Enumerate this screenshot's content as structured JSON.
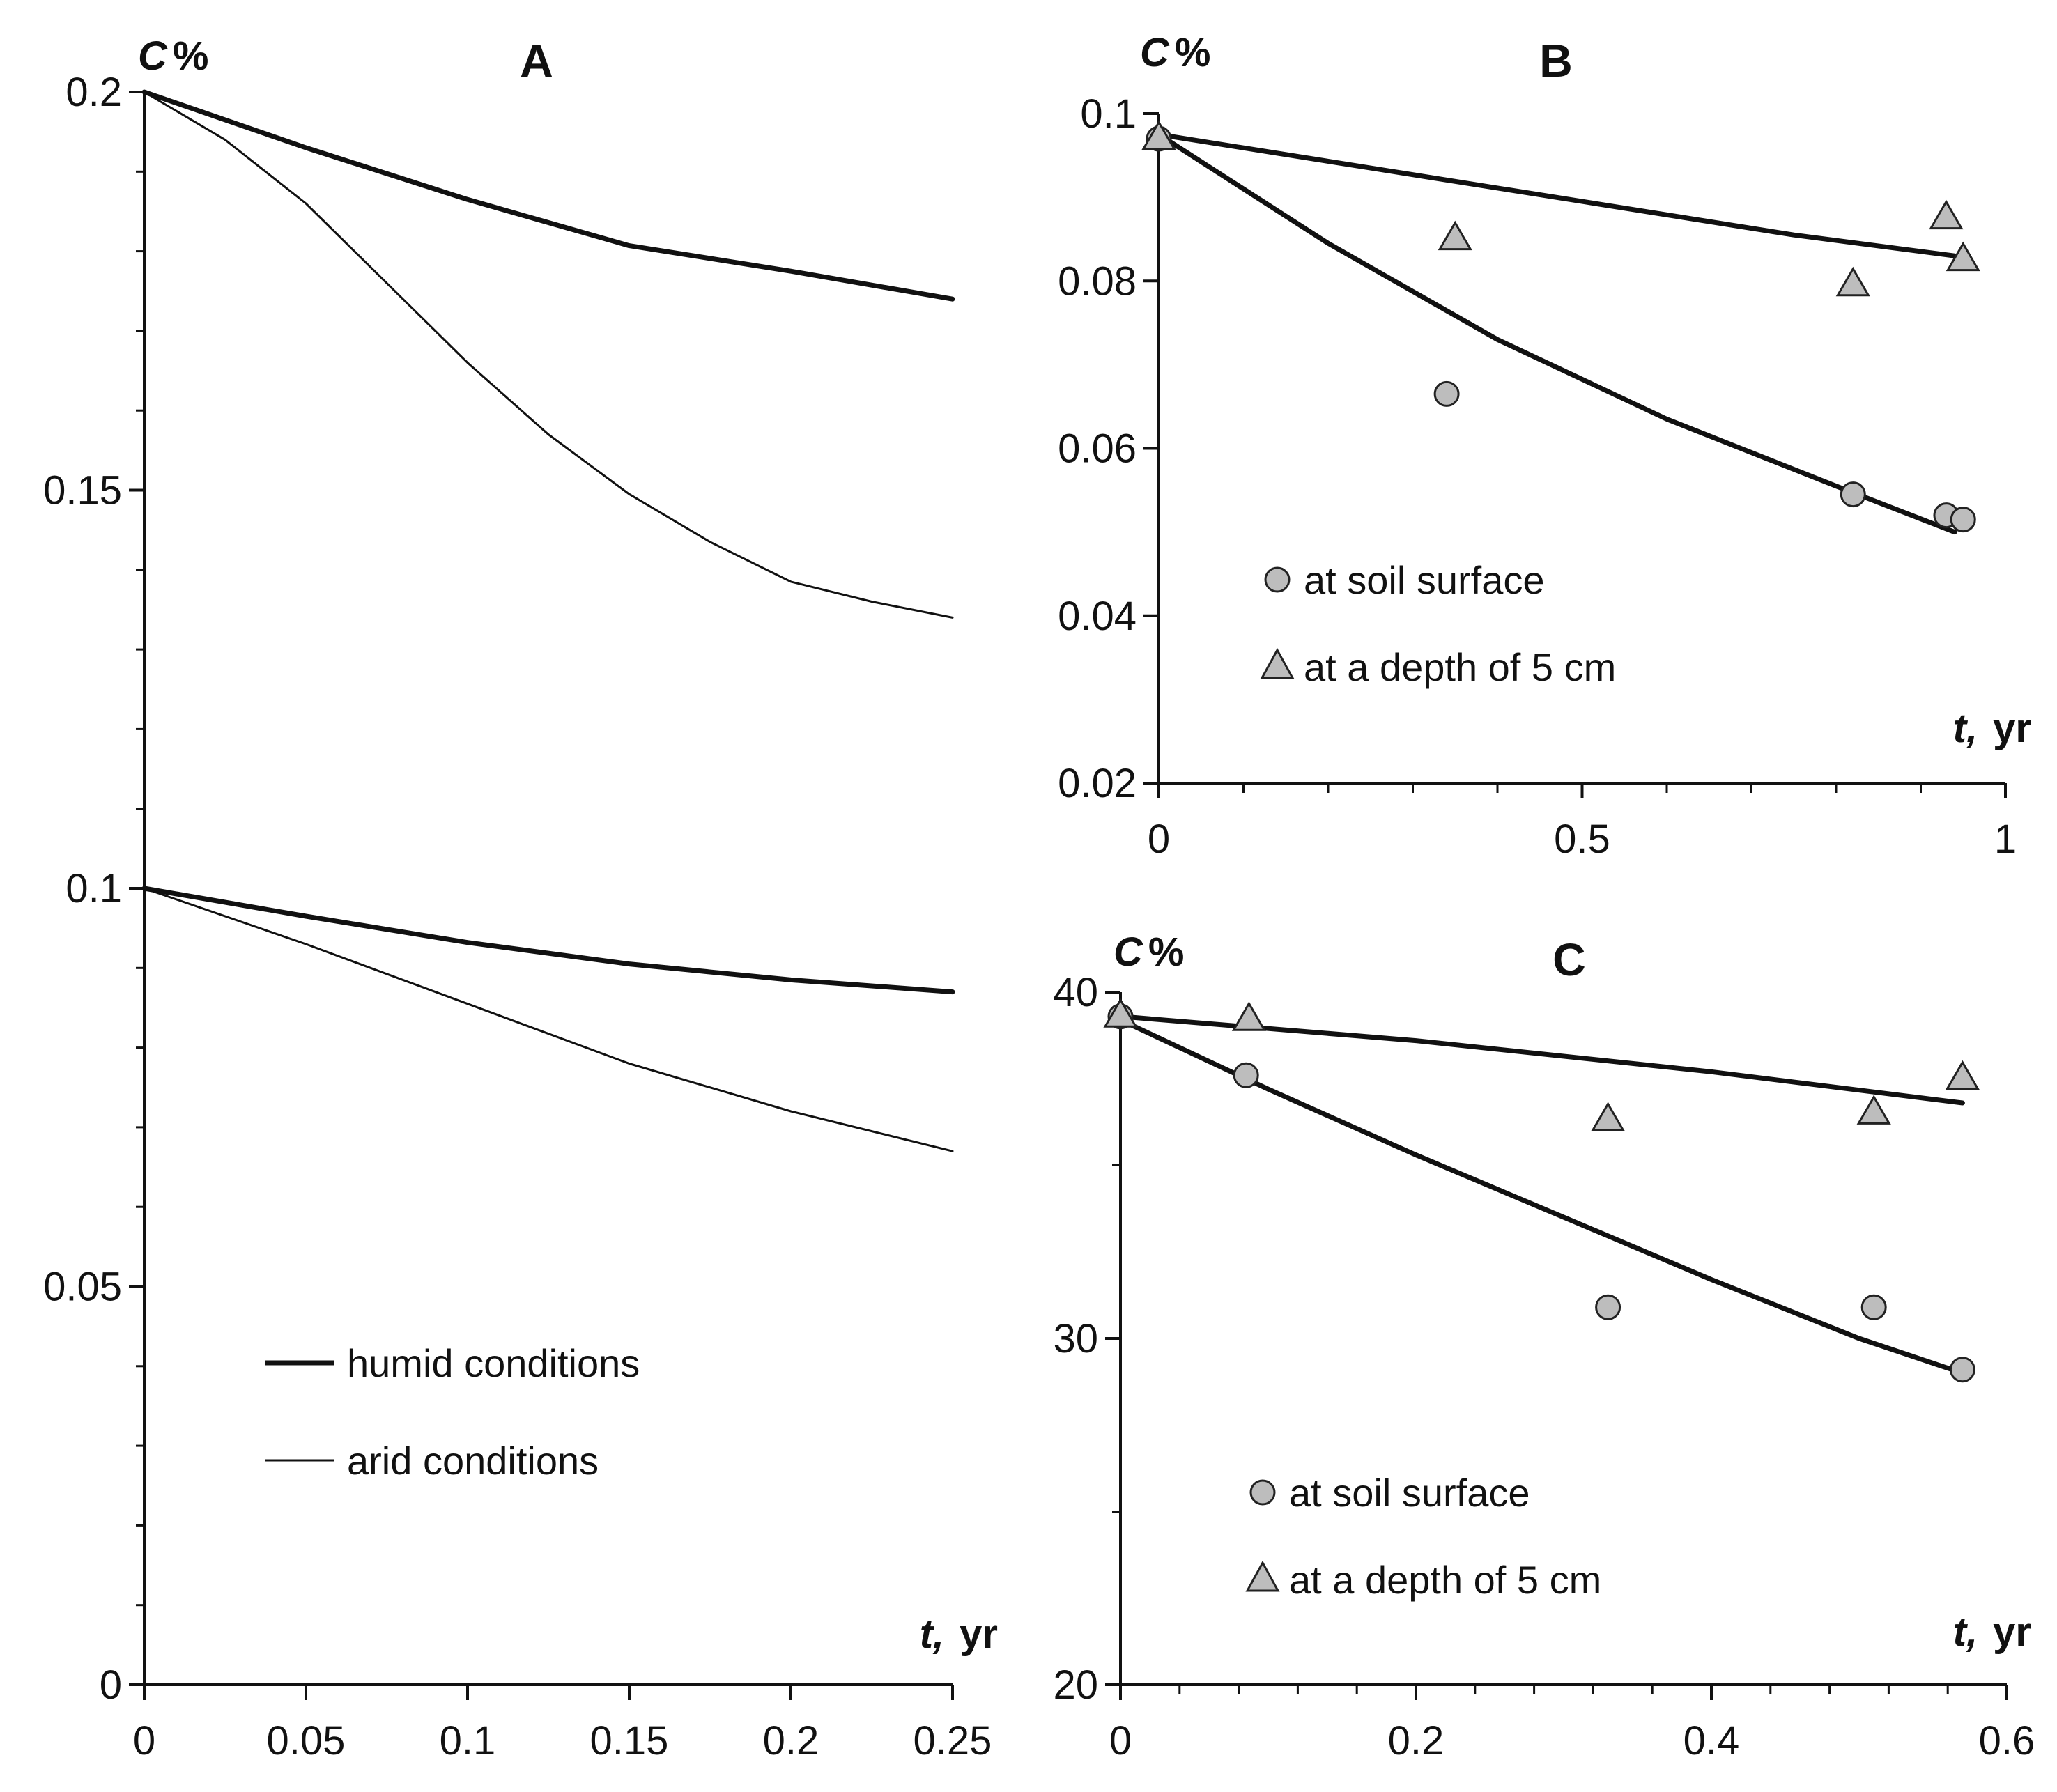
{
  "chart_data": [
    {
      "id": "A",
      "type": "line",
      "title": "A",
      "ylabel_var": "C",
      "ylabel_unit": "%",
      "xlabel_var": "t,",
      "xlabel_unit": "yr",
      "xlim": [
        0,
        0.25
      ],
      "ylim": [
        0,
        0.2
      ],
      "xticks": [
        0,
        0.05,
        0.1,
        0.15,
        0.2,
        0.25
      ],
      "xtick_labels": [
        "0",
        "0.05",
        "0.1",
        "0.15",
        "0.2",
        "0.25"
      ],
      "yticks": [
        0,
        0.05,
        0.1,
        0.15,
        0.2
      ],
      "ytick_labels": [
        "0",
        "0.05",
        "0.1",
        "0.15",
        "0.2"
      ],
      "y_minor_step": 0.01,
      "legend": [
        {
          "label": "humid conditions",
          "style": "thick"
        },
        {
          "label": "arid conditions",
          "style": "thin"
        }
      ],
      "series": [
        {
          "name": "humid conditions (C0 = 0.2)",
          "style": "thick",
          "x": [
            0,
            0.05,
            0.1,
            0.15,
            0.2,
            0.25
          ],
          "y": [
            0.2,
            0.193,
            0.1865,
            0.1807,
            0.1775,
            0.174
          ]
        },
        {
          "name": "arid conditions (C0 = 0.2)",
          "style": "thin",
          "x": [
            0,
            0.025,
            0.05,
            0.075,
            0.1,
            0.125,
            0.15,
            0.175,
            0.2,
            0.225,
            0.25
          ],
          "y": [
            0.2,
            0.194,
            0.186,
            0.176,
            0.166,
            0.157,
            0.1495,
            0.1435,
            0.1385,
            0.136,
            0.134
          ]
        },
        {
          "name": "humid conditions (C0 = 0.1)",
          "style": "thick",
          "x": [
            0,
            0.05,
            0.1,
            0.15,
            0.2,
            0.25
          ],
          "y": [
            0.1,
            0.0965,
            0.0932,
            0.0905,
            0.0885,
            0.087
          ]
        },
        {
          "name": "arid conditions (C0 = 0.1)",
          "style": "thin",
          "x": [
            0,
            0.05,
            0.1,
            0.15,
            0.2,
            0.25
          ],
          "y": [
            0.1,
            0.093,
            0.0855,
            0.078,
            0.072,
            0.067
          ]
        }
      ]
    },
    {
      "id": "B",
      "type": "scatter",
      "title": "B",
      "ylabel_var": "C",
      "ylabel_unit": "%",
      "xlabel_var": "t,",
      "xlabel_unit": "yr",
      "xlim": [
        0,
        1
      ],
      "ylim": [
        0.02,
        0.1
      ],
      "xticks": [
        0,
        0.5,
        1
      ],
      "xtick_labels": [
        "0",
        "0.5",
        "1"
      ],
      "x_minor_step": 0.1,
      "yticks": [
        0.02,
        0.04,
        0.06,
        0.08,
        0.1
      ],
      "ytick_labels": [
        "0.02",
        "0.04",
        "0.06",
        "0.08",
        "0.1"
      ],
      "legend": [
        {
          "label": "at soil surface",
          "marker": "circle"
        },
        {
          "label": "at a depth of 5 cm",
          "marker": "triangle"
        }
      ],
      "series": [
        {
          "name": "model, at a depth of 5 cm",
          "style": "line",
          "x": [
            0,
            0.25,
            0.5,
            0.75,
            0.94
          ],
          "y": [
            0.0975,
            0.0935,
            0.0895,
            0.0855,
            0.083
          ]
        },
        {
          "name": "model, at soil surface",
          "style": "line",
          "x": [
            0,
            0.2,
            0.4,
            0.6,
            0.8,
            0.94
          ],
          "y": [
            0.0975,
            0.0845,
            0.073,
            0.0635,
            0.0555,
            0.05
          ]
        },
        {
          "name": "at soil surface",
          "marker": "circle",
          "x": [
            0,
            0.34,
            0.82,
            0.93,
            0.95
          ],
          "y": [
            0.097,
            0.0665,
            0.0545,
            0.052,
            0.0515
          ]
        },
        {
          "name": "at a depth of 5 cm",
          "marker": "triangle",
          "x": [
            0,
            0.35,
            0.82,
            0.93,
            0.95
          ],
          "y": [
            0.097,
            0.085,
            0.0795,
            0.0875,
            0.0825
          ]
        }
      ]
    },
    {
      "id": "C",
      "type": "scatter",
      "title": "C",
      "ylabel_var": "C",
      "ylabel_unit": "%",
      "xlabel_var": "t,",
      "xlabel_unit": "yr",
      "xlim": [
        0,
        0.6
      ],
      "ylim": [
        20,
        40
      ],
      "xticks": [
        0,
        0.2,
        0.4,
        0.6
      ],
      "xtick_labels": [
        "0",
        "0.2",
        "0.4",
        "0.6"
      ],
      "x_minor_step": 0.04,
      "yticks": [
        20,
        30,
        40
      ],
      "ytick_labels": [
        "20",
        "30",
        "40"
      ],
      "y_minor_step": 5,
      "legend": [
        {
          "label": "at soil surface",
          "marker": "circle"
        },
        {
          "label": "at a depth of 5 cm",
          "marker": "triangle"
        }
      ],
      "series": [
        {
          "name": "model, at a depth of 5 cm",
          "style": "line",
          "x": [
            0,
            0.2,
            0.4,
            0.57
          ],
          "y": [
            39.3,
            38.6,
            37.7,
            36.8
          ]
        },
        {
          "name": "model, at soil surface",
          "style": "line",
          "x": [
            0,
            0.1,
            0.2,
            0.3,
            0.4,
            0.5,
            0.57
          ],
          "y": [
            39.2,
            37.2,
            35.3,
            33.5,
            31.7,
            30.0,
            29.0
          ]
        },
        {
          "name": "at soil surface",
          "marker": "circle",
          "x": [
            0,
            0.085,
            0.33,
            0.51,
            0.57
          ],
          "y": [
            39.3,
            37.6,
            30.9,
            30.9,
            29.1
          ]
        },
        {
          "name": "at a depth of 5 cm",
          "marker": "triangle",
          "x": [
            0,
            0.087,
            0.33,
            0.51,
            0.57
          ],
          "y": [
            39.3,
            39.2,
            36.3,
            36.5,
            37.5
          ]
        }
      ]
    }
  ]
}
